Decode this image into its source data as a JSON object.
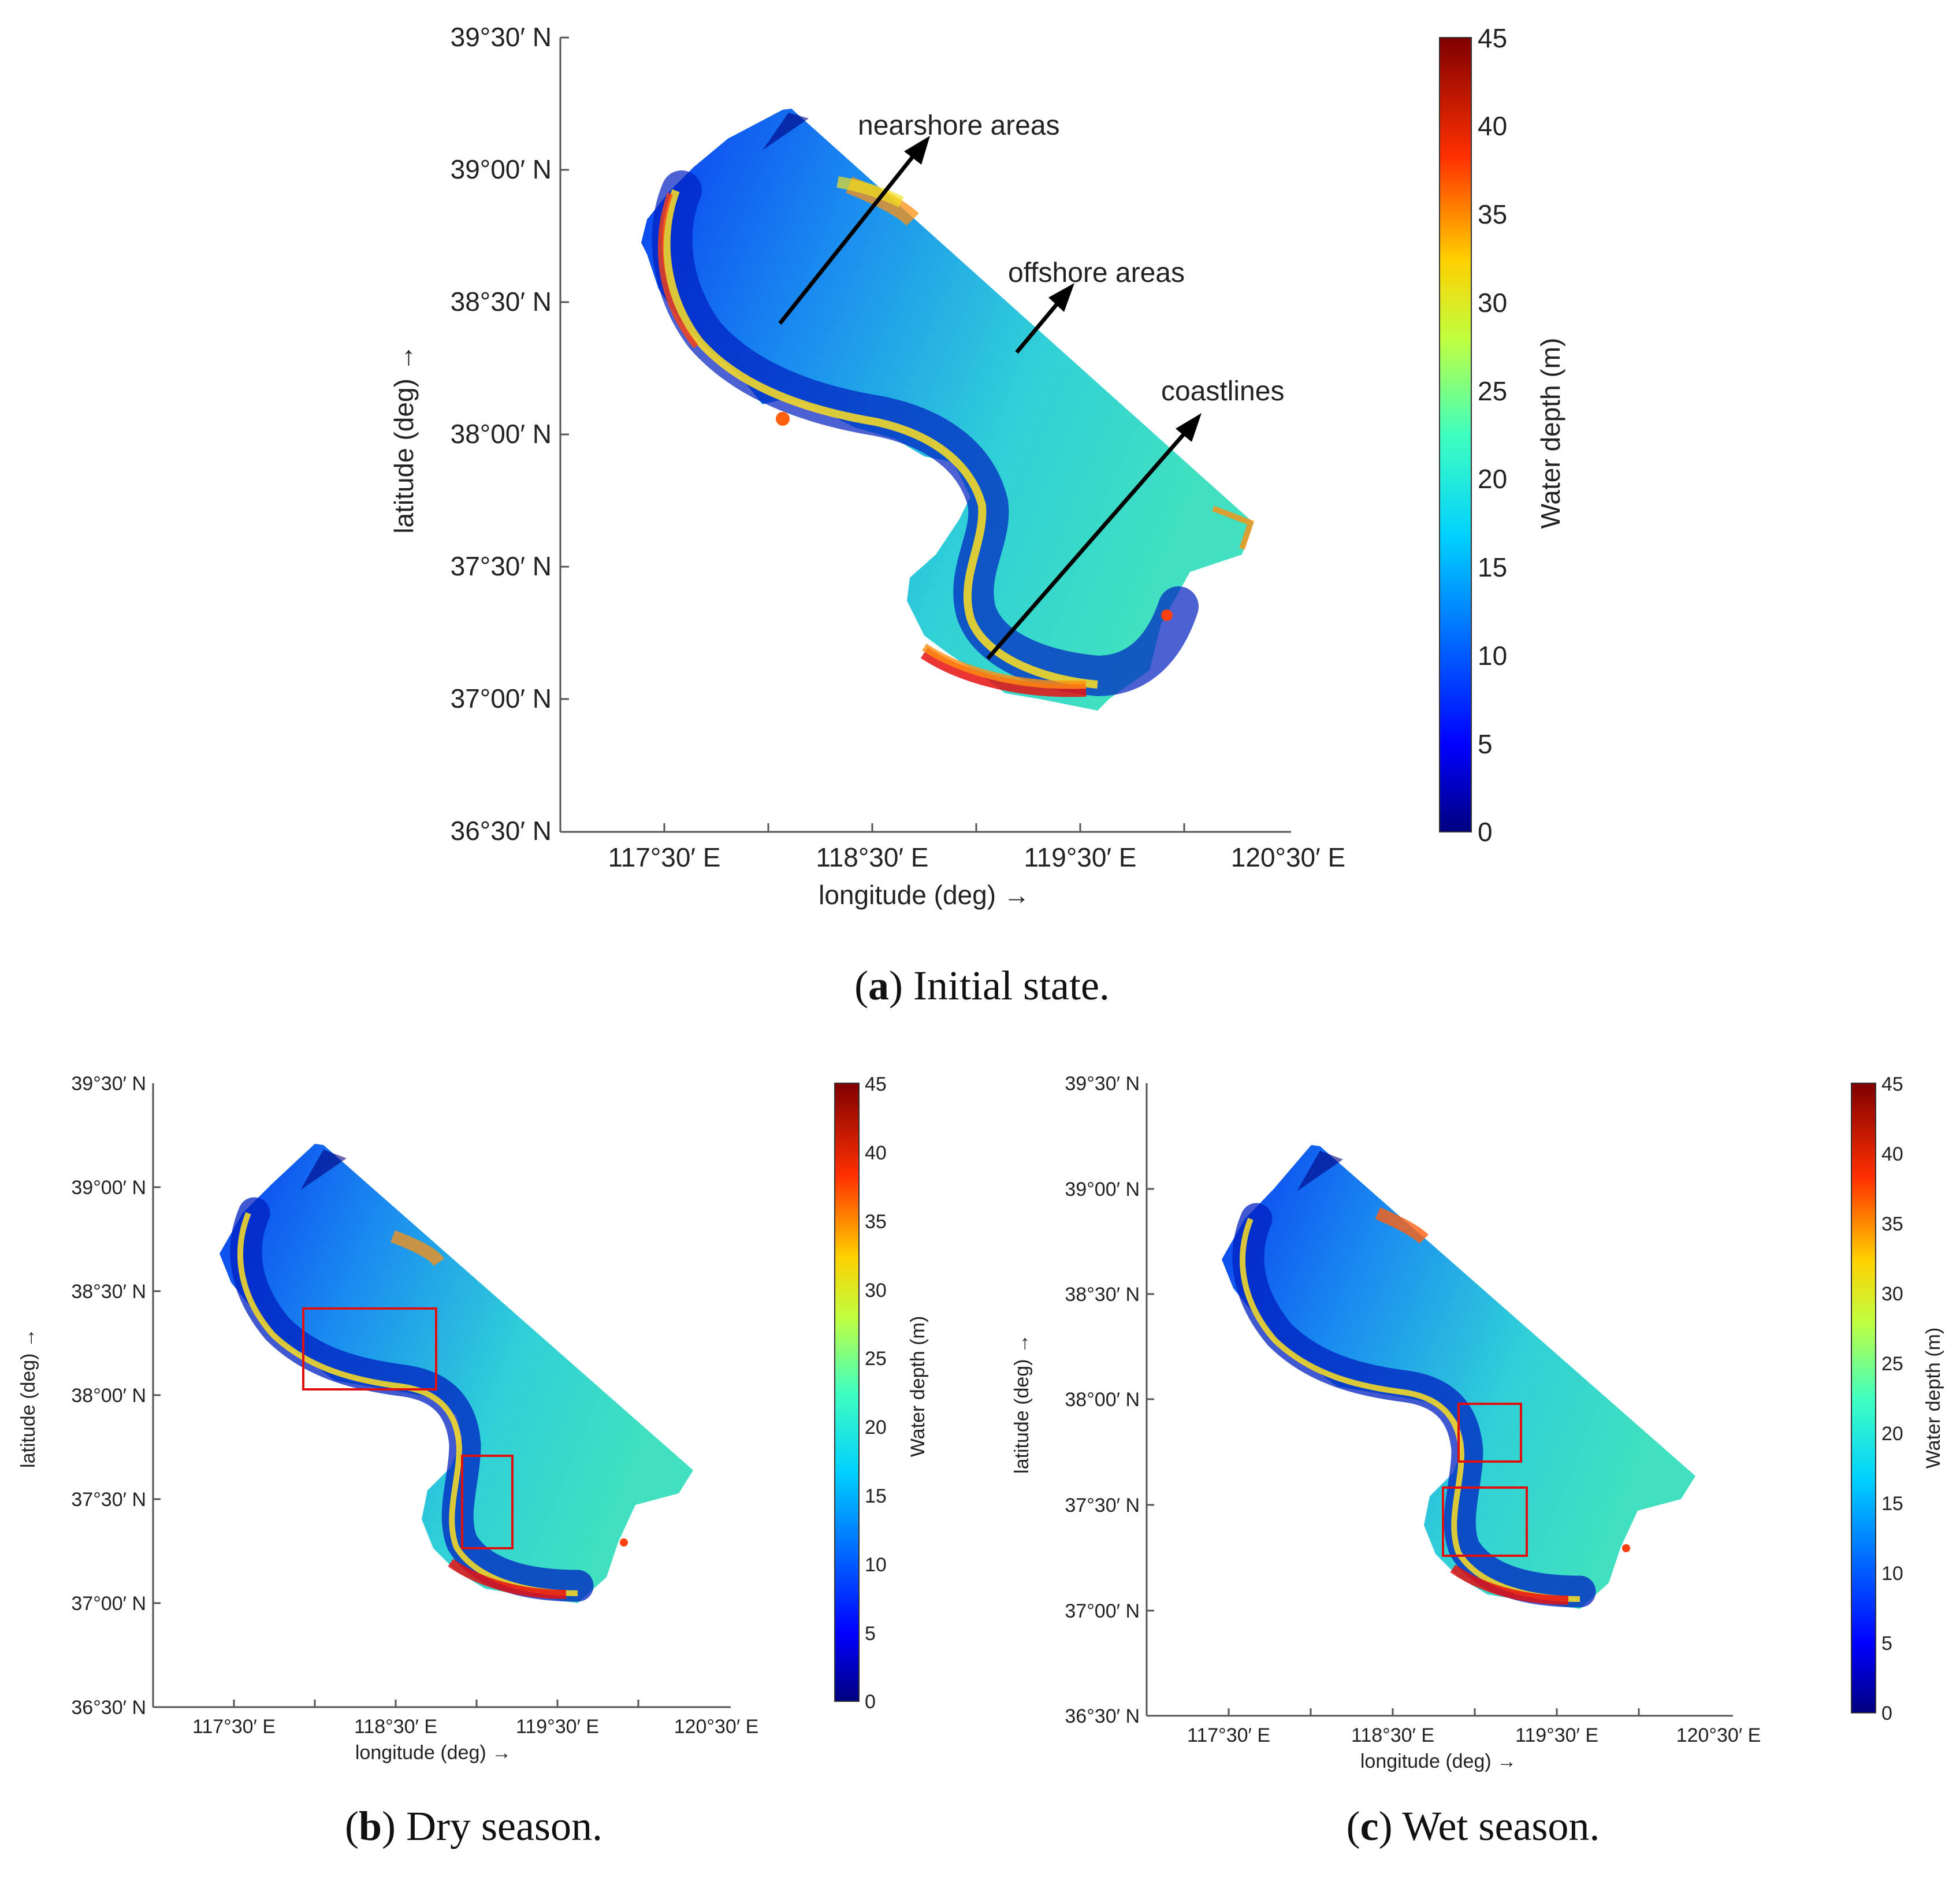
{
  "panels": [
    {
      "id": "a",
      "caption_letter": "a",
      "caption_text": "Initial state.",
      "xlabel": "longitude (deg) →",
      "ylabel": "latitude (deg) →",
      "x_ticks": [
        "117°30′ E",
        "118°30′ E",
        "119°30′ E",
        "120°30′ E"
      ],
      "y_ticks": [
        "39°30′ N",
        "39°00′ N",
        "38°30′ N",
        "38°00′ N",
        "37°30′ N",
        "37°00′ N",
        "36°30′ N"
      ],
      "colorbar_label": "Water depth (m)",
      "colorbar_ticks": [
        "45",
        "40",
        "35",
        "30",
        "25",
        "20",
        "15",
        "10",
        "5",
        "0"
      ],
      "annotations": [
        "nearshore areas",
        "offshore areas",
        "coastlines"
      ],
      "boxes": []
    },
    {
      "id": "b",
      "caption_letter": "b",
      "caption_text": "Dry season.",
      "xlabel": "longitude (deg) →",
      "ylabel": "latitude (deg) →",
      "x_ticks": [
        "117°30′ E",
        "118°30′ E",
        "119°30′ E",
        "120°30′ E"
      ],
      "y_ticks": [
        "39°30′ N",
        "39°00′ N",
        "38°30′ N",
        "38°00′ N",
        "37°30′ N",
        "37°00′ N",
        "36°30′ N"
      ],
      "colorbar_label": "Water depth (m)",
      "colorbar_ticks": [
        "45",
        "40",
        "35",
        "30",
        "25",
        "20",
        "15",
        "10",
        "5",
        "0"
      ],
      "annotations": [],
      "boxes": [
        "box-1",
        "box-2"
      ]
    },
    {
      "id": "c",
      "caption_letter": "c",
      "caption_text": "Wet season.",
      "xlabel": "longitude (deg) →",
      "ylabel": "latitude (deg) →",
      "x_ticks": [
        "117°30′ E",
        "118°30′ E",
        "119°30′ E",
        "120°30′ E"
      ],
      "y_ticks": [
        "39°30′ N",
        "39°00′ N",
        "38°30′ N",
        "38°00′ N",
        "37°30′ N",
        "37°00′ N",
        "36°30′ N"
      ],
      "colorbar_label": "Water depth (m)",
      "colorbar_ticks": [
        "45",
        "40",
        "35",
        "30",
        "25",
        "20",
        "15",
        "10",
        "5",
        "0"
      ],
      "annotations": [],
      "boxes": [
        "box-1",
        "box-2"
      ]
    }
  ],
  "colors": {
    "deep": "#00007f",
    "blue": "#0040ff",
    "cyan": "#20c8e0",
    "green": "#50e0a0",
    "yellow": "#f0e020",
    "orange": "#ff9010",
    "red": "#e81010",
    "darkred": "#7f0000",
    "box": "#e01010"
  }
}
